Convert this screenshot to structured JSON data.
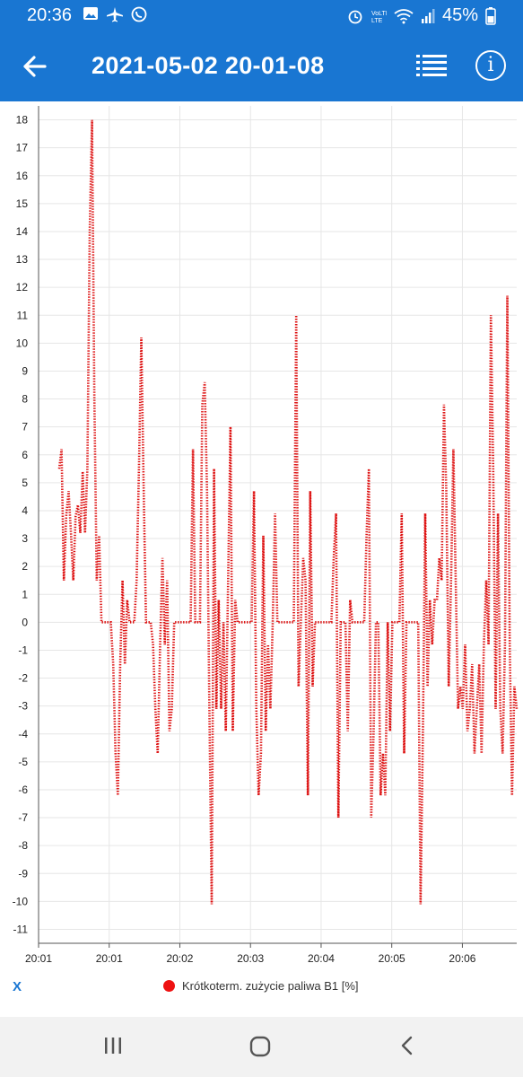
{
  "status_bar": {
    "time": "20:36",
    "battery": "45%",
    "left_icons": [
      "image-icon",
      "airplane-icon",
      "whatsapp-icon"
    ],
    "right_icons": [
      "alarm-icon",
      "volte-icon",
      "wifi-icon",
      "signal-icon",
      "battery-icon"
    ]
  },
  "app_bar": {
    "title": "2021-05-02 20-01-08",
    "icons": [
      "back-arrow-icon",
      "list-icon",
      "info-icon"
    ],
    "color": "#1976d2"
  },
  "chart_controls": {
    "reset_label": "X"
  },
  "chart_data": {
    "type": "line",
    "series": [
      {
        "name": "Krótkoterm. zużycie paliwa B1 [%]",
        "color": "#dd1111",
        "style": "dotted",
        "values": [
          5.5,
          6.2,
          1.5,
          3.8,
          4.7,
          3.2,
          1.5,
          3.8,
          4.2,
          3.2,
          5.4,
          3.2,
          5.5,
          14,
          18,
          8,
          1.5,
          3.1,
          0,
          0,
          0,
          0,
          0,
          -1.5,
          -4.7,
          -6.2,
          -1.5,
          1.5,
          -1.5,
          0.8,
          0,
          0,
          0,
          1.5,
          5.5,
          10.2,
          4.7,
          0,
          0,
          0,
          -0.8,
          -3.1,
          -4.7,
          -0.8,
          2.3,
          -0.8,
          1.5,
          -3.9,
          -3.1,
          0,
          0,
          0,
          0,
          0,
          0,
          0,
          0,
          6.2,
          0,
          0,
          0,
          7.8,
          8.6,
          4.7,
          -3.1,
          -10.1,
          5.5,
          -3.1,
          0.8,
          -3.1,
          0,
          -3.9,
          1.5,
          7,
          -3.9,
          0.8,
          0,
          0,
          0,
          0,
          0,
          0,
          0,
          4.7,
          -3.1,
          -6.2,
          -4.7,
          3.1,
          -3.9,
          -0.8,
          -3.1,
          0,
          3.9,
          0,
          0,
          0,
          0,
          0,
          0,
          0,
          0,
          11,
          -2.3,
          0,
          2.3,
          1.5,
          -6.2,
          4.7,
          -2.3,
          0,
          0,
          0,
          0,
          0,
          0,
          0,
          0,
          2.3,
          3.9,
          -7,
          0,
          0,
          0,
          -3.9,
          0.8,
          0,
          0,
          0,
          0,
          0,
          0,
          3.1,
          5.5,
          -7,
          -3.9,
          0,
          0,
          -6.2,
          -4.7,
          -6.2,
          0,
          -3.9,
          0,
          0,
          0,
          0,
          3.9,
          -4.7,
          0,
          0,
          0,
          0,
          0,
          0,
          -10.1,
          -3.9,
          3.9,
          -2.3,
          0.8,
          -0.8,
          0.8,
          0.8,
          2.3,
          1.5,
          7.8,
          4.7,
          -2.3,
          1.5,
          6.2,
          1.5,
          -3.1,
          -2.3,
          -3.1,
          -0.8,
          -3.9,
          -3.1,
          -1.5,
          -4.7,
          -3.1,
          -1.5,
          -4.7,
          -0.8,
          1.5,
          -0.8,
          11,
          5.5,
          -3.1,
          3.9,
          -3.1,
          -4.7,
          -0.8,
          11.7,
          -0.8,
          -6.2,
          -2.3,
          -3.1
        ]
      }
    ],
    "x_tick_labels": [
      "20:01",
      "20:01",
      "20:02",
      "20:03",
      "20:04",
      "20:05",
      "20:06"
    ],
    "x_tick_positions": [
      0,
      1.3,
      2.6,
      3.9,
      5.2,
      6.5,
      7.8
    ],
    "x_range": [
      0,
      8.8
    ],
    "y_range": [
      -11.5,
      18.5
    ],
    "y_ticks": [
      18,
      17,
      16,
      15,
      14,
      13,
      12,
      11,
      10,
      9,
      8,
      7,
      6,
      5,
      4,
      3,
      2,
      1,
      0,
      -1,
      -2,
      -3,
      -4,
      -5,
      -6,
      -7,
      -8,
      -9,
      -10,
      -11
    ],
    "grid": true,
    "legend_position": "bottom-center"
  },
  "nav_bar": {
    "icons": [
      "recents-icon",
      "home-icon",
      "back-icon"
    ]
  }
}
